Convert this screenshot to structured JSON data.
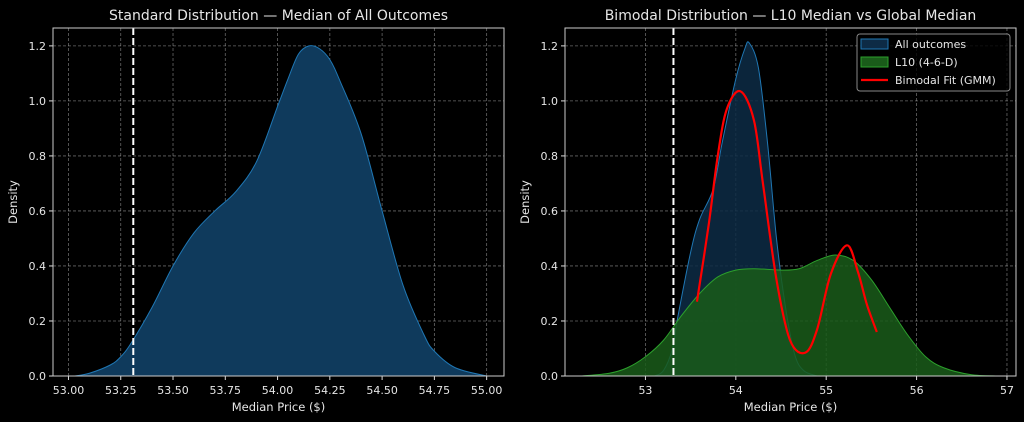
{
  "chart_data": [
    {
      "type": "area",
      "title": "Standard Distribution — Median of All Outcomes",
      "xlabel": "Median Price ($)",
      "ylabel": "Density",
      "xlim": [
        52.926,
        55.083
      ],
      "ylim": [
        0,
        1.265
      ],
      "xticks": [
        53.0,
        53.25,
        53.5,
        53.75,
        54.0,
        54.25,
        54.5,
        54.75,
        55.0
      ],
      "xtick_labels": [
        "53.00",
        "53.25",
        "53.50",
        "53.75",
        "54.00",
        "54.25",
        "54.50",
        "54.75",
        "55.00"
      ],
      "yticks": [
        0,
        0.2,
        0.4,
        0.6,
        0.8,
        1.0,
        1.2
      ],
      "ytick_labels": [
        "0.0",
        "0.2",
        "0.4",
        "0.6",
        "0.8",
        "1.0",
        "1.2"
      ],
      "grid": true,
      "vline": 53.31,
      "series": [
        {
          "name": "All outcomes",
          "color": "#1f77b4",
          "fill": "#0f3a5c",
          "x": [
            53.03,
            53.1,
            53.2,
            53.25,
            53.3,
            53.4,
            53.5,
            53.6,
            53.7,
            53.8,
            53.9,
            54.0,
            54.05,
            54.1,
            54.15,
            54.2,
            54.25,
            54.3,
            54.4,
            54.5,
            54.6,
            54.7,
            54.75,
            54.85,
            55.0
          ],
          "y": [
            0.0,
            0.01,
            0.04,
            0.07,
            0.12,
            0.25,
            0.4,
            0.52,
            0.6,
            0.67,
            0.78,
            0.98,
            1.08,
            1.17,
            1.2,
            1.19,
            1.15,
            1.07,
            0.88,
            0.6,
            0.33,
            0.15,
            0.09,
            0.03,
            0.0
          ]
        }
      ]
    },
    {
      "type": "area",
      "title": "Bimodal Distribution — L10 Median vs Global Median",
      "xlabel": "Median Price ($)",
      "ylabel": "Density",
      "xlim": [
        52.11,
        57.1
      ],
      "ylim": [
        0,
        1.265
      ],
      "xticks": [
        53,
        54,
        55,
        56,
        57
      ],
      "xtick_labels": [
        "53",
        "54",
        "55",
        "56",
        "57"
      ],
      "yticks": [
        0,
        0.2,
        0.4,
        0.6,
        0.8,
        1.0,
        1.2
      ],
      "ytick_labels": [
        "0.0",
        "0.2",
        "0.4",
        "0.6",
        "0.8",
        "1.0",
        "1.2"
      ],
      "grid": true,
      "vline": 53.31,
      "legend": "top-right",
      "series": [
        {
          "name": "All outcomes",
          "kind": "area",
          "color": "#1f77b4",
          "fill": "#0d2b45",
          "x": [
            53.1,
            53.2,
            53.3,
            53.35,
            53.5,
            53.6,
            53.75,
            53.85,
            54.0,
            54.1,
            54.15,
            54.25,
            54.35,
            54.45,
            54.55,
            54.65,
            54.75,
            54.9
          ],
          "y": [
            0.0,
            0.02,
            0.1,
            0.2,
            0.45,
            0.57,
            0.68,
            0.85,
            1.08,
            1.19,
            1.21,
            1.12,
            0.85,
            0.5,
            0.25,
            0.08,
            0.02,
            0.0
          ]
        },
        {
          "name": "L10 (4-6-D)",
          "kind": "area",
          "color": "#2ca02c",
          "fill": "#1a5c1a",
          "x": [
            52.3,
            52.6,
            52.8,
            53.0,
            53.2,
            53.4,
            53.6,
            53.8,
            54.0,
            54.2,
            54.5,
            54.7,
            54.9,
            55.1,
            55.3,
            55.5,
            55.7,
            55.9,
            56.1,
            56.3,
            56.6,
            56.9
          ],
          "y": [
            0.0,
            0.01,
            0.03,
            0.07,
            0.13,
            0.22,
            0.3,
            0.36,
            0.385,
            0.39,
            0.385,
            0.39,
            0.42,
            0.44,
            0.42,
            0.35,
            0.25,
            0.15,
            0.07,
            0.03,
            0.005,
            0.0
          ]
        },
        {
          "name": "Bimodal Fit (GMM)",
          "kind": "line",
          "color": "#ff0000",
          "x": [
            53.57,
            53.7,
            53.8,
            53.9,
            54.05,
            54.2,
            54.3,
            54.45,
            54.6,
            54.77,
            54.9,
            55.05,
            55.23,
            55.35,
            55.45,
            55.56
          ],
          "y": [
            0.27,
            0.55,
            0.8,
            0.97,
            1.035,
            0.93,
            0.7,
            0.35,
            0.13,
            0.085,
            0.17,
            0.37,
            0.475,
            0.38,
            0.26,
            0.16
          ]
        }
      ]
    }
  ]
}
